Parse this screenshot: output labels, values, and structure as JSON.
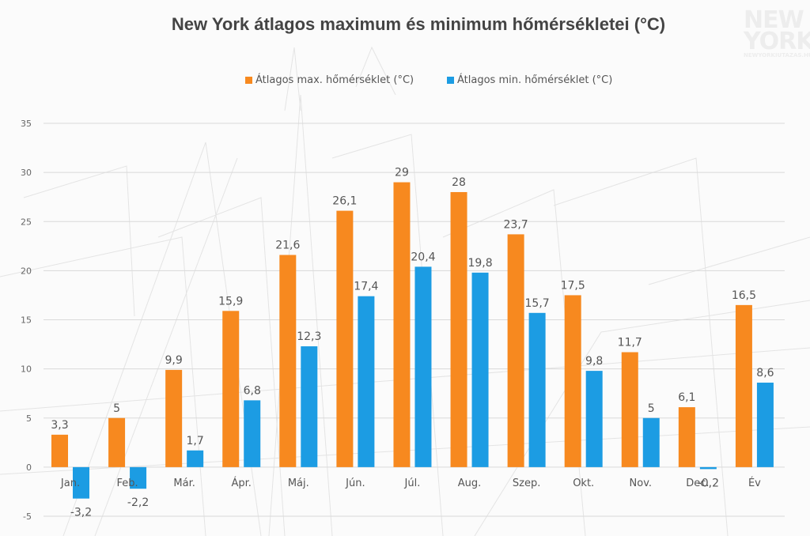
{
  "colors": {
    "max": "#f7891f",
    "min": "#1c9ce3",
    "grid": "#d9d9d9"
  },
  "logo": {
    "lines": [
      "NEW",
      "YORK"
    ],
    "tagline": "NEWYORKIUTAZAS.HU"
  },
  "chart_data": {
    "type": "bar",
    "title": "New York átlagos maximum és minimum hőmérsékletei (°C)",
    "categories": [
      "Jan.",
      "Feb.",
      "Már.",
      "Ápr.",
      "Máj.",
      "Jún.",
      "Júl.",
      "Aug.",
      "Szep.",
      "Okt.",
      "Nov.",
      "Dec.",
      "Év"
    ],
    "series": [
      {
        "name": "Átlagos max. hőmérséklet (°C)",
        "values": [
          3.3,
          5,
          9.9,
          15.9,
          21.6,
          26.1,
          29,
          28,
          23.7,
          17.5,
          11.7,
          6.1,
          16.5
        ],
        "labels": [
          "3,3",
          "5",
          "9,9",
          "15,9",
          "21,6",
          "26,1",
          "29",
          "28",
          "23,7",
          "17,5",
          "11,7",
          "6,1",
          "16,5"
        ]
      },
      {
        "name": "Átlagos min. hőmérséklet (°C)",
        "values": [
          -3.2,
          -2.2,
          1.7,
          6.8,
          12.3,
          17.4,
          20.4,
          19.8,
          15.7,
          9.8,
          5,
          -0.2,
          8.6
        ],
        "labels": [
          "-3,2",
          "-2,2",
          "1,7",
          "6,8",
          "12,3",
          "17,4",
          "20,4",
          "19,8",
          "15,7",
          "9,8",
          "5",
          "-0,2",
          "8,6"
        ]
      }
    ],
    "ylim": [
      -5,
      35
    ],
    "yticks": [
      "-5",
      "0",
      "5",
      "10",
      "15",
      "20",
      "25",
      "30",
      "35"
    ],
    "grid": true,
    "legend": "top-center"
  }
}
